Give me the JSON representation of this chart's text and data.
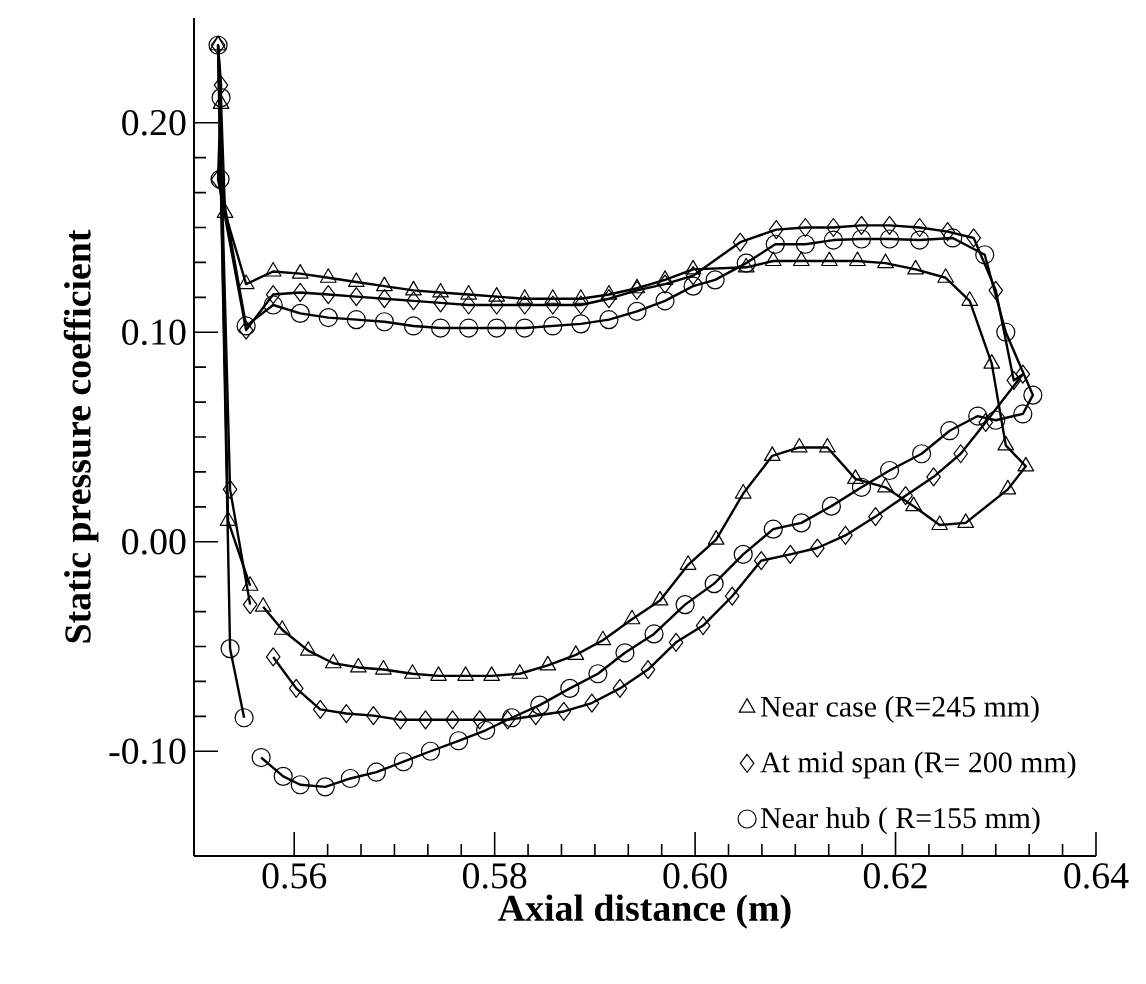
{
  "chart_data": {
    "type": "line",
    "xlabel": "Axial distance (m)",
    "ylabel": "Static pressure coefficient",
    "xlim": [
      0.55,
      0.64
    ],
    "ylim": [
      -0.15,
      0.25
    ],
    "xticks": [
      0.56,
      0.58,
      {
        "value": 0.6,
        "label": "0.60"
      },
      0.62,
      0.64
    ],
    "yticks": [
      {
        "value": -0.1,
        "label": "-0.10"
      },
      {
        "value": 0,
        "label": "0.00"
      },
      {
        "value": 0.1,
        "label": "0.10"
      },
      {
        "value": 0.2,
        "label": "0.20"
      }
    ],
    "grid": false,
    "legend": "bottom right",
    "series": [
      {
        "name": "Near case (R=245 mm)",
        "color": "#000000",
        "marker": "triangle",
        "x": [
          0.5556,
          0.5534,
          0.5524,
          0.5527,
          0.5531,
          0.5552,
          0.5579,
          0.5606,
          0.5634,
          0.5662,
          0.569,
          0.5719,
          0.5746,
          0.5774,
          0.5802,
          0.583,
          0.5858,
          0.5886,
          0.5914,
          0.5942,
          0.597,
          0.5998,
          0.6051,
          0.6078,
          0.6106,
          0.6134,
          0.6162,
          0.619,
          0.622,
          0.625,
          0.6274,
          0.6296,
          0.631,
          0.633,
          0.6312,
          0.627,
          0.6244,
          0.6218,
          0.619,
          0.616,
          0.6132,
          0.6104,
          0.6077,
          0.6048,
          0.6021,
          0.5993,
          0.5965,
          0.5937,
          0.5908,
          0.5881,
          0.5853,
          0.5825,
          0.5797,
          0.5771,
          0.5744,
          0.5718,
          0.5689,
          0.5664,
          0.5639,
          0.5614,
          0.5588,
          0.5569
        ],
        "values": [
          -0.021,
          0.01,
          0.237,
          0.209,
          0.157,
          0.123,
          0.129,
          0.128,
          0.126,
          0.124,
          0.122,
          0.12,
          0.119,
          0.118,
          0.117,
          0.116,
          0.116,
          0.116,
          0.118,
          0.121,
          0.125,
          0.13,
          0.131,
          0.134,
          0.134,
          0.134,
          0.134,
          0.133,
          0.13,
          0.126,
          0.115,
          0.085,
          0.046,
          0.036,
          0.025,
          0.009,
          0.008,
          0.017,
          0.026,
          0.03,
          0.045,
          0.045,
          0.041,
          0.023,
          0.001,
          -0.011,
          -0.028,
          -0.037,
          -0.047,
          -0.054,
          -0.059,
          -0.063,
          -0.064,
          -0.064,
          -0.064,
          -0.063,
          -0.061,
          -0.06,
          -0.058,
          -0.052,
          -0.042,
          -0.031
        ]
      },
      {
        "name": "At mid span (R= 200 mm)",
        "color": "#000000",
        "marker": "diamond",
        "x": [
          0.5556,
          0.5536,
          0.5524,
          0.5527,
          0.5524,
          0.5552,
          0.5579,
          0.5606,
          0.5634,
          0.5662,
          0.569,
          0.5719,
          0.5746,
          0.5774,
          0.5802,
          0.583,
          0.5858,
          0.5886,
          0.5914,
          0.5942,
          0.597,
          0.5998,
          0.6045,
          0.6081,
          0.611,
          0.6138,
          0.6166,
          0.6194,
          0.6224,
          0.6252,
          0.6278,
          0.63,
          0.6318,
          0.6327,
          0.629,
          0.6265,
          0.6238,
          0.621,
          0.618,
          0.615,
          0.6122,
          0.6095,
          0.6066,
          0.6037,
          0.6008,
          0.5981,
          0.5953,
          0.5925,
          0.5897,
          0.5869,
          0.5841,
          0.5813,
          0.5785,
          0.5758,
          0.5731,
          0.5706,
          0.5679,
          0.5652,
          0.5626,
          0.5602,
          0.5579
        ],
        "values": [
          -0.03,
          0.025,
          0.237,
          0.218,
          0.173,
          0.101,
          0.118,
          0.119,
          0.118,
          0.117,
          0.116,
          0.115,
          0.114,
          0.113,
          0.113,
          0.113,
          0.113,
          0.113,
          0.116,
          0.12,
          0.123,
          0.127,
          0.143,
          0.149,
          0.15,
          0.15,
          0.151,
          0.151,
          0.15,
          0.148,
          0.145,
          0.12,
          0.077,
          0.08,
          0.057,
          0.042,
          0.031,
          0.022,
          0.012,
          0.003,
          -0.003,
          -0.006,
          -0.009,
          -0.026,
          -0.04,
          -0.048,
          -0.061,
          -0.07,
          -0.077,
          -0.081,
          -0.083,
          -0.085,
          -0.085,
          -0.085,
          -0.085,
          -0.085,
          -0.083,
          -0.082,
          -0.08,
          -0.07,
          -0.055
        ]
      },
      {
        "name": "Near hub ( R=155 mm)",
        "color": "#000000",
        "marker": "circle",
        "x": [
          0.555,
          0.5536,
          0.5524,
          0.5527,
          0.5526,
          0.5552,
          0.5579,
          0.5606,
          0.5634,
          0.5662,
          0.569,
          0.5719,
          0.5746,
          0.5774,
          0.5802,
          0.583,
          0.5858,
          0.5886,
          0.5914,
          0.5942,
          0.597,
          0.5998,
          0.602,
          0.6051,
          0.608,
          0.611,
          0.6138,
          0.6166,
          0.6194,
          0.6224,
          0.6257,
          0.6289,
          0.631,
          0.6337,
          0.6327,
          0.63,
          0.6282,
          0.6254,
          0.6226,
          0.6194,
          0.6166,
          0.6136,
          0.6106,
          0.6078,
          0.6048,
          0.6019,
          0.599,
          0.5959,
          0.593,
          0.5903,
          0.5875,
          0.5845,
          0.5817,
          0.5791,
          0.5764,
          0.5736,
          0.5709,
          0.5682,
          0.5656,
          0.5631,
          0.5606,
          0.5589,
          0.5567
        ],
        "values": [
          -0.084,
          -0.051,
          0.237,
          0.212,
          0.173,
          0.103,
          0.113,
          0.109,
          0.107,
          0.106,
          0.105,
          0.103,
          0.102,
          0.102,
          0.102,
          0.102,
          0.103,
          0.104,
          0.106,
          0.11,
          0.115,
          0.122,
          0.125,
          0.133,
          0.142,
          0.142,
          0.144,
          0.1445,
          0.1445,
          0.144,
          0.145,
          0.137,
          0.1,
          0.07,
          0.061,
          0.058,
          0.06,
          0.053,
          0.042,
          0.034,
          0.026,
          0.017,
          0.009,
          0.006,
          -0.006,
          -0.02,
          -0.03,
          -0.044,
          -0.053,
          -0.063,
          -0.07,
          -0.078,
          -0.084,
          -0.09,
          -0.095,
          -0.1,
          -0.105,
          -0.11,
          -0.113,
          -0.117,
          -0.116,
          -0.112,
          -0.103
        ]
      }
    ]
  }
}
